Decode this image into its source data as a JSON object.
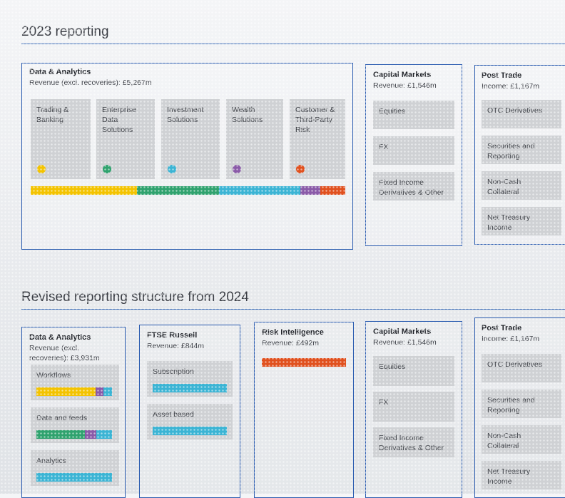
{
  "colors": {
    "trading": "#f3c300",
    "enterprise": "#2fa26e",
    "investment": "#3bb4d4",
    "wealth": "#8a5aa8",
    "customer": "#e0501e",
    "cyan": "#3bb4d4",
    "orange": "#e0501e"
  },
  "section_2023": {
    "title": "2023 reporting",
    "data_analytics": {
      "title": "Data & Analytics",
      "revenue": "Revenue (excl. recoveries): £5,267m",
      "tiles": [
        "Trading &\nBanking",
        "Enterprise\nData\nSolutions",
        "Investment\nSolutions",
        "Wealth\nSolutions",
        "Customer &\nThird-Party\nRisk"
      ]
    },
    "capital_markets": {
      "title": "Capital Markets",
      "revenue": "Revenue: £1,546m",
      "tiles": [
        "Equities",
        "FX",
        "Fixed Income\nDerivatives & Other"
      ]
    },
    "post_trade": {
      "title": "Post Trade",
      "revenue": "Income: £1,167m",
      "tiles": [
        "OTC Derivatives",
        "Securities and\nReporting",
        "Non-Cash\nCollateral",
        "Net Treasury\nIncome"
      ]
    }
  },
  "section_2024": {
    "title": "Revised reporting structure from 2024",
    "data_analytics": {
      "title": "Data & Analytics",
      "revenue": "Revenue (excl.\nrecoveries): £3,931m",
      "tiles": [
        "Workflows",
        "Data and feeds",
        "Analytics"
      ]
    },
    "ftse_russell": {
      "title": "FTSE Russell",
      "revenue": "Revenue: £844m",
      "tiles": [
        "Subscription",
        "Asset based"
      ]
    },
    "risk_intelligence": {
      "title": "Risk Intelligence",
      "revenue": "Revenue: £492m"
    },
    "capital_markets": {
      "title": "Capital Markets",
      "revenue": "Revenue: £1,546m",
      "tiles": [
        "Equities",
        "FX",
        "Fixed Income\nDerivatives & Other"
      ]
    },
    "post_trade": {
      "title": "Post Trade",
      "revenue": "Income: £1,167m",
      "tiles": [
        "OTC Derivatives",
        "Securities and\nReporting",
        "Non-Cash\nCollateral",
        "Net Treasury\nIncome"
      ]
    }
  }
}
